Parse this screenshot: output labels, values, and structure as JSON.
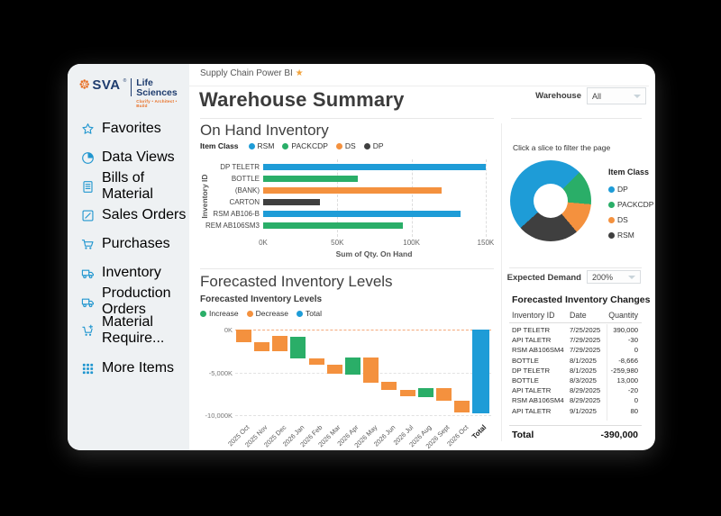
{
  "ui": {
    "topbar": {
      "title": "Supply Chain Power BI",
      "star": "★"
    },
    "page_title": "Warehouse Summary",
    "brand": {
      "name": "SVA",
      "reg": "®",
      "division": "Life Sciences",
      "tagline": "Clarify • Architect • Build"
    },
    "sidebar": {
      "items": [
        {
          "label": "Favorites",
          "icon": "star-icon",
          "glyph": "star"
        },
        {
          "label": "Data Views",
          "icon": "pie-chart-icon",
          "glyph": "pie"
        },
        {
          "label": "Bills of Material",
          "icon": "document-icon",
          "glyph": "bill"
        },
        {
          "label": "Sales Orders",
          "icon": "edit-icon",
          "glyph": "edit"
        },
        {
          "label": "Purchases",
          "icon": "cart-icon",
          "glyph": "cart"
        },
        {
          "label": "Inventory",
          "icon": "truck-icon",
          "glyph": "truck"
        },
        {
          "label": "Production Orders",
          "icon": "truck-icon",
          "glyph": "truck"
        },
        {
          "label": "Material Require...",
          "icon": "cart-plus-icon",
          "glyph": "cartplus"
        },
        {
          "label": "More Items",
          "icon": "grid-icon",
          "glyph": "grid"
        }
      ]
    },
    "filters": {
      "warehouse_label": "Warehouse",
      "warehouse_value": "All",
      "expected_demand_label": "Expected Demand",
      "expected_demand_value": "200%"
    },
    "table": {
      "title": "Forecasted Inventory Changes",
      "columns": [
        "Inventory ID",
        "Date",
        "Quantity"
      ],
      "rows": [
        [
          "DP TELETR",
          "7/25/2025",
          "390,000"
        ],
        [
          "API TALETR",
          "7/29/2025",
          "-30"
        ],
        [
          "RSM AB106SM4",
          "7/29/2025",
          "0"
        ],
        [
          "BOTTLE",
          "8/1/2025",
          "-8,666"
        ],
        [
          "DP TELETR",
          "8/1/2025",
          "-259,980"
        ],
        [
          "BOTTLE",
          "8/3/2025",
          "13,000"
        ],
        [
          "API TALETR",
          "8/29/2025",
          "-20"
        ],
        [
          "RSM AB106SM4",
          "8/29/2025",
          "0"
        ],
        [
          "API TALETR",
          "9/1/2025",
          "80"
        ]
      ],
      "total_label": "Total",
      "total_value": "-390,000"
    },
    "colors": {
      "blue": "#1e9cd7",
      "green": "#2aae68",
      "orange": "#f4913e",
      "dark": "#3f3f3f"
    }
  },
  "chart_data": [
    {
      "id": "on-hand-bar",
      "type": "bar",
      "orientation": "horizontal",
      "title": "On Hand Inventory",
      "legend_title": "Item Class",
      "legend": [
        {
          "label": "RSM",
          "color": "#1e9cd7"
        },
        {
          "label": "PACKCDP",
          "color": "#2aae68"
        },
        {
          "label": "DS",
          "color": "#f4913e"
        },
        {
          "label": "DP",
          "color": "#3f3f3f"
        }
      ],
      "categories": [
        "DP TELETR",
        "BOTTLE",
        "(BANK)",
        "CARTON",
        "RSM AB106-B",
        "REM AB106SM3"
      ],
      "values": [
        150000,
        64000,
        120000,
        38000,
        133000,
        94000
      ],
      "bar_colors": [
        "#1e9cd7",
        "#2aae68",
        "#f4913e",
        "#3f3f3f",
        "#1e9cd7",
        "#2aae68"
      ],
      "x_ticks": [
        {
          "label": "0K",
          "value": 0
        },
        {
          "label": "50K",
          "value": 50000
        },
        {
          "label": "100K",
          "value": 100000
        },
        {
          "label": "150K",
          "value": 150000
        }
      ],
      "xlim": [
        0,
        155000
      ],
      "xlabel": "Sum of Qty. On Hand",
      "ylabel": "Inventory ID",
      "grid": "vertical-dashed"
    },
    {
      "id": "item-class-donut",
      "type": "pie",
      "caption": "Click a slice to filter the page",
      "legend_title": "Item Class",
      "slices": [
        {
          "label": "DP",
          "color": "#1e9cd7",
          "percent": 49
        },
        {
          "label": "PACKCDP",
          "color": "#2aae68",
          "percent": 14
        },
        {
          "label": "DS",
          "color": "#f4913e",
          "percent": 12.5
        },
        {
          "label": "RSM",
          "color": "#3f3f3f",
          "percent": 24.5
        }
      ],
      "segments_deg": [
        {
          "color": "#1e9cd7",
          "from": 0,
          "to": 45
        },
        {
          "color": "#2aae68",
          "from": 45,
          "to": 95
        },
        {
          "color": "#f4913e",
          "from": 95,
          "to": 140
        },
        {
          "color": "#3f3f3f",
          "from": 140,
          "to": 228
        },
        {
          "color": "#1e9cd7",
          "from": 228,
          "to": 360
        }
      ]
    },
    {
      "id": "forecast-waterfall",
      "type": "waterfall",
      "section_title": "Forecasted Inventory Levels",
      "title": "Forecasted Inventory Levels",
      "unit": "K",
      "legend": [
        {
          "label": "Increase",
          "color": "#2aae68"
        },
        {
          "label": "Decrease",
          "color": "#f4913e"
        },
        {
          "label": "Total",
          "color": "#1e9cd7"
        }
      ],
      "y_ticks": [
        {
          "label": "0K",
          "value": 0
        },
        {
          "label": "-5,000K",
          "value": -5000
        },
        {
          "label": "-10,000K",
          "value": -10000
        }
      ],
      "ylim": [
        0,
        -10500
      ],
      "bars": [
        {
          "label": "2025 Oct",
          "kind": "decrease",
          "from": 0,
          "to": -1500
        },
        {
          "label": "2025 Nov",
          "kind": "decrease",
          "from": -1500,
          "to": -2550
        },
        {
          "label": "2025 Dec",
          "kind": "decrease",
          "from": -750,
          "to": -2550
        },
        {
          "label": "2026 Jan",
          "kind": "increase",
          "from": -800,
          "to": -3400
        },
        {
          "label": "2026 Feb",
          "kind": "decrease",
          "from": -3350,
          "to": -4100
        },
        {
          "label": "2026 Mar",
          "kind": "decrease",
          "from": -4050,
          "to": -5150
        },
        {
          "label": "2026 Apr",
          "kind": "increase",
          "from": -3300,
          "to": -5300
        },
        {
          "label": "2026 May",
          "kind": "decrease",
          "from": -3300,
          "to": -6200
        },
        {
          "label": "2026 Jun",
          "kind": "decrease",
          "from": -6100,
          "to": -7000
        },
        {
          "label": "2026 Jul",
          "kind": "decrease",
          "from": -7000,
          "to": -7800
        },
        {
          "label": "2026 Aug",
          "kind": "increase",
          "from": -6850,
          "to": -7900
        },
        {
          "label": "2026 Sept",
          "kind": "decrease",
          "from": -6850,
          "to": -8250
        },
        {
          "label": "2026 Oct",
          "kind": "decrease",
          "from": -8300,
          "to": -9700
        },
        {
          "label": "Total",
          "kind": "total",
          "from": 0,
          "to": -9800
        }
      ]
    }
  ]
}
